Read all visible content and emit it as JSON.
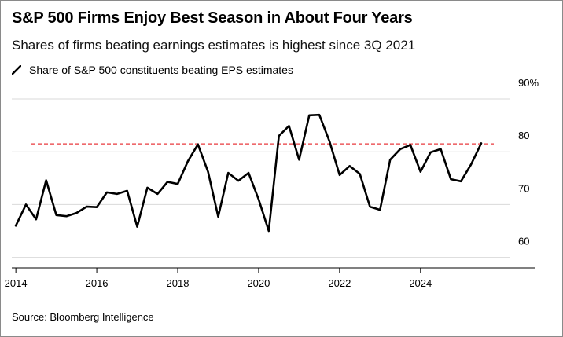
{
  "header": {
    "title": "S&P 500 Firms Enjoy Best Season in About Four Years",
    "subtitle": "Shares of firms beating earnings estimates is highest since 3Q 2021"
  },
  "footer": {
    "source": "Source: Bloomberg Intelligence"
  },
  "colors": {
    "series": "#000000",
    "reference": "#e8383d",
    "grid": "#d9d9d9",
    "axis": "#000000"
  },
  "chart_data": {
    "type": "line",
    "title": "S&P 500 Firms Enjoy Best Season in About Four Years",
    "subtitle": "Shares of firms beating earnings estimates is highest since 3Q 2021",
    "xlabel": "",
    "ylabel": "",
    "xlim": [
      2013.9,
      2026.2
    ],
    "ylim": [
      58,
      90
    ],
    "x_ticks": [
      2014,
      2016,
      2018,
      2020,
      2022,
      2024
    ],
    "y_ticks": [
      {
        "value": 60,
        "label": "60"
      },
      {
        "value": 70,
        "label": "70"
      },
      {
        "value": 80,
        "label": "80"
      },
      {
        "value": 90,
        "label": "90%"
      }
    ],
    "y_axis_side": "right",
    "grid": true,
    "legend": "top-left",
    "series": [
      {
        "name": "Share of S&P 500 constituents beating EPS estimates",
        "x": [
          2014.0,
          2014.25,
          2014.5,
          2014.75,
          2015.0,
          2015.25,
          2015.5,
          2015.75,
          2016.0,
          2016.25,
          2016.5,
          2016.75,
          2017.0,
          2017.25,
          2017.5,
          2017.75,
          2018.0,
          2018.25,
          2018.5,
          2018.75,
          2019.0,
          2019.25,
          2019.5,
          2019.75,
          2020.0,
          2020.25,
          2020.5,
          2020.75,
          2021.0,
          2021.25,
          2021.5,
          2021.75,
          2022.0,
          2022.25,
          2022.5,
          2022.75,
          2023.0,
          2023.25,
          2023.5,
          2023.75,
          2024.0,
          2024.25,
          2024.5,
          2024.75,
          2025.0,
          2025.25,
          2025.5
        ],
        "values": [
          66.0,
          70.0,
          67.2,
          74.6,
          68.0,
          67.8,
          68.4,
          69.6,
          69.5,
          72.3,
          72.0,
          72.6,
          65.8,
          73.2,
          72.0,
          74.3,
          73.9,
          78.2,
          81.4,
          76.2,
          67.7,
          76.0,
          74.5,
          76.0,
          71.0,
          65.0,
          83.0,
          84.9,
          78.5,
          86.9,
          87.0,
          82.0,
          75.6,
          77.3,
          75.8,
          69.6,
          69.0,
          78.5,
          80.5,
          81.3,
          76.2,
          79.9,
          80.5,
          74.8,
          74.4,
          77.6,
          81.6
        ]
      }
    ],
    "reference_lines": [
      {
        "value": 81.5,
        "style": "dashed"
      }
    ]
  }
}
